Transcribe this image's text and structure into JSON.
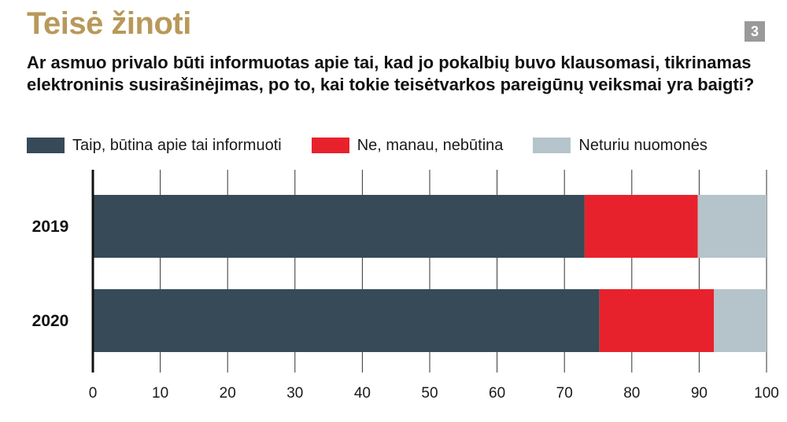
{
  "header": {
    "title": "Teisė žinoti",
    "badge": "3",
    "question": "Ar asmuo privalo būti informuotas apie tai, kad jo pokalbių buvo klausomasi, tikrinamas elektroninis susirašinėjimas, po to, kai tokie teisėtvarkos pareigūnų veiksmai yra baigti?"
  },
  "chart_data": {
    "type": "bar",
    "orientation": "horizontal",
    "stacked": true,
    "categories": [
      "2019",
      "2020"
    ],
    "series": [
      {
        "name": "Taip, būtina apie tai informuoti",
        "color": "#374a57",
        "values": [
          73,
          75.2
        ]
      },
      {
        "name": "Ne, manau, nebūtina",
        "color": "#e8222c",
        "values": [
          16.8,
          17
        ]
      },
      {
        "name": "Neturiu nuomonės",
        "color": "#b5c4ca",
        "values": [
          10.2,
          7.8
        ]
      }
    ],
    "xlim": [
      0,
      100
    ],
    "xticks": [
      "0",
      "10",
      "20",
      "30",
      "40",
      "50",
      "60",
      "70",
      "80",
      "90",
      "100"
    ],
    "grid": true,
    "legend_position": "top-left"
  }
}
